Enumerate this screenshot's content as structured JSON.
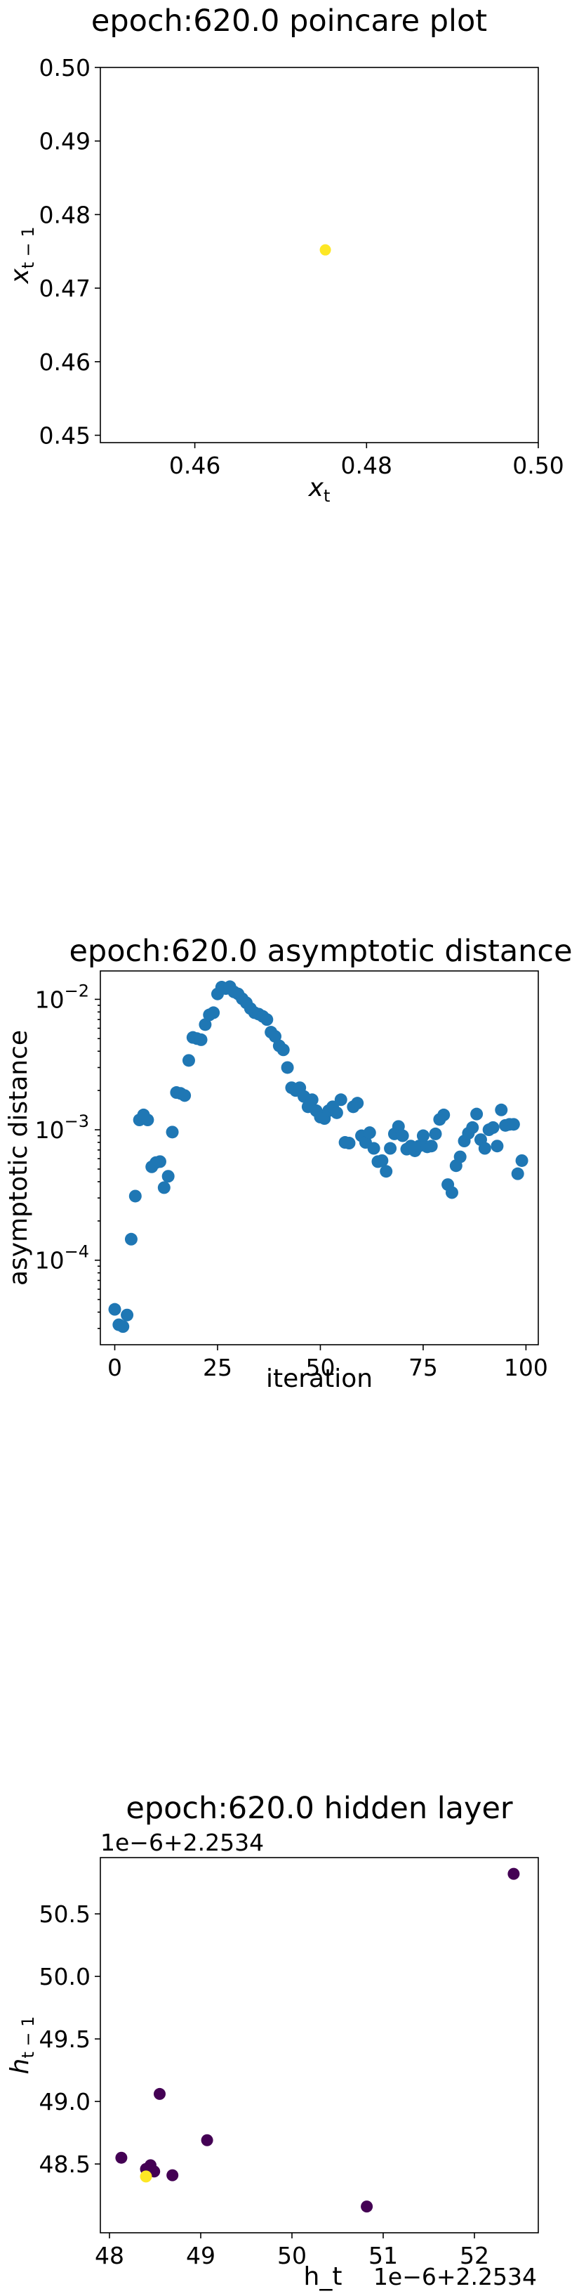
{
  "chart_data": [
    {
      "type": "scatter",
      "title": "epoch:620.0 poincare plot",
      "xlabel": "x",
      "xlabel_sub": "t",
      "ylabel": "x",
      "ylabel_sub": "t − 1",
      "xlim": [
        0.449,
        0.5
      ],
      "ylim": [
        0.449,
        0.5
      ],
      "xticks": [
        0.46,
        0.48,
        0.5
      ],
      "xtick_labels": [
        "0.46",
        "0.48",
        "0.50"
      ],
      "yticks": [
        0.45,
        0.46,
        0.47,
        0.48,
        0.49,
        0.5
      ],
      "ytick_labels": [
        "0.45",
        "0.46",
        "0.47",
        "0.48",
        "0.49",
        "0.50"
      ],
      "points": [
        {
          "x": 0.4752,
          "y": 0.4752,
          "color": "#fde725"
        }
      ]
    },
    {
      "type": "scatter",
      "title": "epoch:620.0 asymptotic distance",
      "xlabel": "iteration",
      "ylabel": "asymptotic distance",
      "yscale": "log",
      "xlim": [
        -3.5,
        103
      ],
      "ylim": [
        2.25e-05,
        0.0165
      ],
      "xticks": [
        0,
        25,
        50,
        75,
        100
      ],
      "xtick_labels": [
        "0",
        "25",
        "50",
        "75",
        "100"
      ],
      "yticks": [
        0.0001,
        0.001,
        0.01
      ],
      "ytick_labels": [
        {
          "base": "10",
          "exp": "−4"
        },
        {
          "base": "10",
          "exp": "−3"
        },
        {
          "base": "10",
          "exp": "−2"
        }
      ],
      "color": "#1f77b4",
      "x": [
        0,
        1,
        2,
        3,
        4,
        5,
        6,
        7,
        8,
        9,
        10,
        11,
        12,
        13,
        14,
        15,
        16,
        17,
        18,
        19,
        20,
        21,
        22,
        23,
        24,
        25,
        26,
        27,
        28,
        29,
        30,
        31,
        32,
        33,
        34,
        35,
        36,
        37,
        38,
        39,
        40,
        41,
        42,
        43,
        44,
        45,
        46,
        47,
        48,
        49,
        50,
        51,
        52,
        53,
        54,
        55,
        56,
        57,
        58,
        59,
        60,
        61,
        62,
        63,
        64,
        65,
        66,
        67,
        68,
        69,
        70,
        71,
        72,
        73,
        74,
        75,
        76,
        77,
        78,
        79,
        80,
        81,
        82,
        83,
        84,
        85,
        86,
        87,
        88,
        89,
        90,
        91,
        92,
        93,
        94,
        95,
        96,
        97,
        98,
        99
      ],
      "y": [
        4.2e-05,
        3.2e-05,
        3.1e-05,
        3.8e-05,
        0.000145,
        0.00031,
        0.00119,
        0.0013,
        0.00119,
        0.00052,
        0.00056,
        0.00057,
        0.00036,
        0.00044,
        0.00096,
        0.00193,
        0.0019,
        0.00183,
        0.0034,
        0.0051,
        0.005,
        0.0049,
        0.0064,
        0.0076,
        0.0079,
        0.011,
        0.0124,
        0.0121,
        0.0125,
        0.0114,
        0.011,
        0.0101,
        0.0094,
        0.0085,
        0.0079,
        0.0077,
        0.0074,
        0.007,
        0.0056,
        0.0052,
        0.0044,
        0.0041,
        0.003,
        0.0021,
        0.002,
        0.0021,
        0.0018,
        0.0015,
        0.0017,
        0.0014,
        0.00125,
        0.00122,
        0.0014,
        0.0015,
        0.00135,
        0.0017,
        0.0008,
        0.00079,
        0.0015,
        0.0016,
        0.0009,
        0.0008,
        0.00095,
        0.00072,
        0.00057,
        0.00058,
        0.00048,
        0.00072,
        0.00093,
        0.00106,
        0.0009,
        0.00071,
        0.00075,
        0.00069,
        0.00075,
        0.0009,
        0.00074,
        0.00075,
        0.00093,
        0.0012,
        0.0013,
        0.00038,
        0.00033,
        0.00053,
        0.00062,
        0.00082,
        0.00094,
        0.00104,
        0.00132,
        0.00084,
        0.00072,
        0.001,
        0.00104,
        0.00075,
        0.00142,
        0.00108,
        0.0011,
        0.0011,
        0.00046,
        0.00058
      ]
    },
    {
      "type": "scatter",
      "title": "epoch:620.0 hidden layer",
      "xlabel": "h_t",
      "ylabel": "h",
      "ylabel_sub": "t − 1",
      "x_offset_text": "1e−6+2.2534",
      "y_offset_text": "1e−6+2.2534",
      "xlim": [
        47.9,
        52.7
      ],
      "ylim": [
        47.95,
        50.95
      ],
      "xticks": [
        48,
        49,
        50,
        51,
        52
      ],
      "xtick_labels": [
        "48",
        "49",
        "50",
        "51",
        "52"
      ],
      "yticks": [
        48.5,
        49.0,
        49.5,
        50.0,
        50.5
      ],
      "ytick_labels": [
        "48.5",
        "49.0",
        "49.5",
        "50.0",
        "50.5"
      ],
      "points": [
        {
          "x": 52.43,
          "y": 50.82,
          "color": "#440154"
        },
        {
          "x": 48.13,
          "y": 48.55,
          "color": "#440154"
        },
        {
          "x": 48.55,
          "y": 49.06,
          "color": "#440154"
        },
        {
          "x": 49.07,
          "y": 48.69,
          "color": "#440154"
        },
        {
          "x": 48.45,
          "y": 48.49,
          "color": "#440154"
        },
        {
          "x": 48.4,
          "y": 48.46,
          "color": "#440154"
        },
        {
          "x": 48.49,
          "y": 48.44,
          "color": "#440154"
        },
        {
          "x": 48.69,
          "y": 48.41,
          "color": "#440154"
        },
        {
          "x": 50.82,
          "y": 48.16,
          "color": "#440154"
        },
        {
          "x": 48.4,
          "y": 48.4,
          "color": "#fde725"
        }
      ]
    }
  ]
}
